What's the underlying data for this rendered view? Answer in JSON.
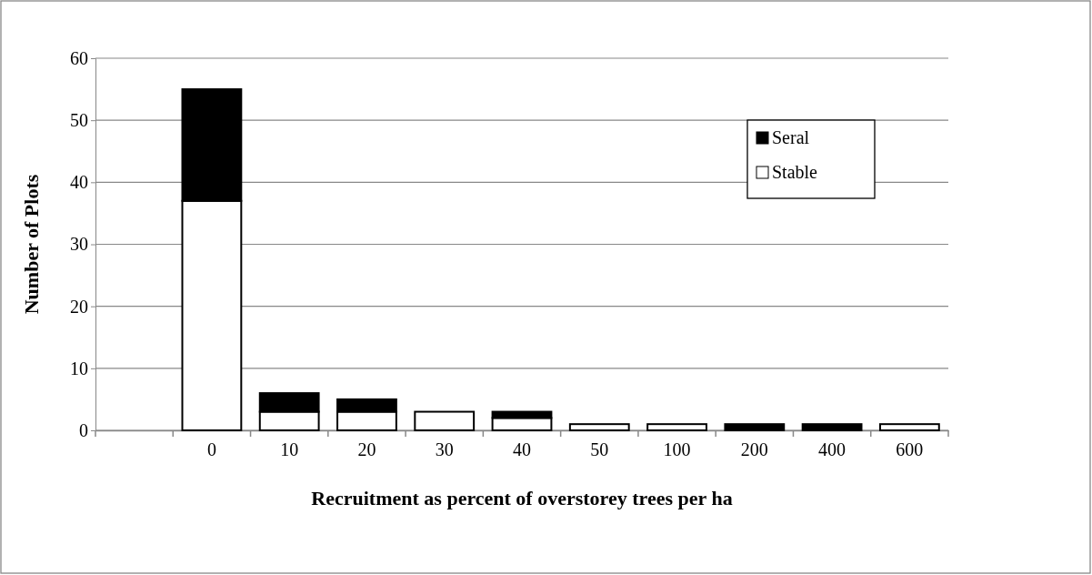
{
  "chart_data": {
    "type": "bar",
    "stacked": true,
    "xlabel": "Recruitment as percent of overstorey trees per ha",
    "ylabel": "Number of Plots",
    "categories": [
      null,
      "0",
      "10",
      "20",
      "30",
      "40",
      "50",
      "100",
      "200",
      "400",
      "600"
    ],
    "series": [
      {
        "name": "Stable",
        "color": "#ffffff",
        "values": [
          0,
          37,
          3,
          3,
          3,
          2,
          1,
          1,
          0,
          0,
          1
        ]
      },
      {
        "name": "Seral",
        "color": "#000000",
        "values": [
          0,
          18,
          3,
          2,
          0,
          1,
          0,
          0,
          1,
          1,
          0
        ]
      }
    ],
    "ylim": [
      0,
      60
    ],
    "yticks": [
      0,
      10,
      20,
      30,
      40,
      50,
      60
    ],
    "grid": "y",
    "legend": "top right"
  }
}
